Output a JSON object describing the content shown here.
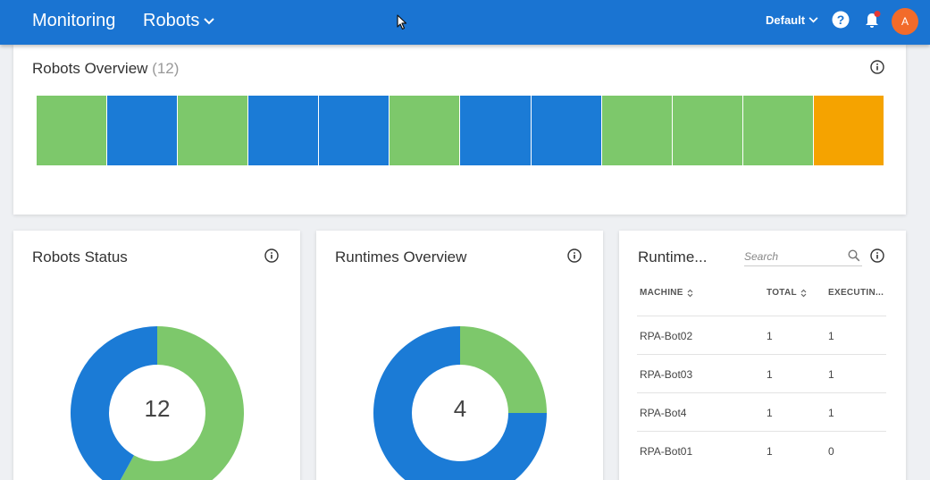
{
  "header": {
    "title": "Monitoring",
    "section": "Robots",
    "tenant": "Default",
    "avatar_initial": "A"
  },
  "overview": {
    "title": "Robots Overview",
    "count": "(12)",
    "tiles": [
      "#7dc86b",
      "#1b7bd6",
      "#7dc86b",
      "#1b7bd6",
      "#1b7bd6",
      "#7dc86b",
      "#1b7bd6",
      "#1b7bd6",
      "#7dc86b",
      "#7dc86b",
      "#7dc86b",
      "#f5a300"
    ]
  },
  "robots_status": {
    "title": "Robots Status",
    "total": "12",
    "segments": [
      {
        "color": "#7dc86b",
        "fraction": 0.58
      },
      {
        "color": "#1b7bd6",
        "fraction": 0.42
      }
    ]
  },
  "runtimes_overview": {
    "title": "Runtimes Overview",
    "total": "4",
    "segments": [
      {
        "color": "#7dc86b",
        "fraction": 0.25
      },
      {
        "color": "#1b7bd6",
        "fraction": 0.75
      }
    ]
  },
  "runtimes_table": {
    "title": "Runtime...",
    "search_placeholder": "Search",
    "columns": [
      "MACHINE",
      "TOTAL",
      "EXECUTIN..."
    ],
    "rows": [
      {
        "machine": "RPA-Bot02",
        "total": "1",
        "executing": "1"
      },
      {
        "machine": "RPA-Bot03",
        "total": "1",
        "executing": "1"
      },
      {
        "machine": "RPA-Bot4",
        "total": "1",
        "executing": "1"
      },
      {
        "machine": "RPA-Bot01",
        "total": "1",
        "executing": "0"
      }
    ]
  },
  "colors": {
    "header_bg": "#1a74d2",
    "green": "#7dc86b",
    "blue": "#1b7bd6",
    "orange": "#f5a300",
    "avatar": "#f26b2a"
  }
}
